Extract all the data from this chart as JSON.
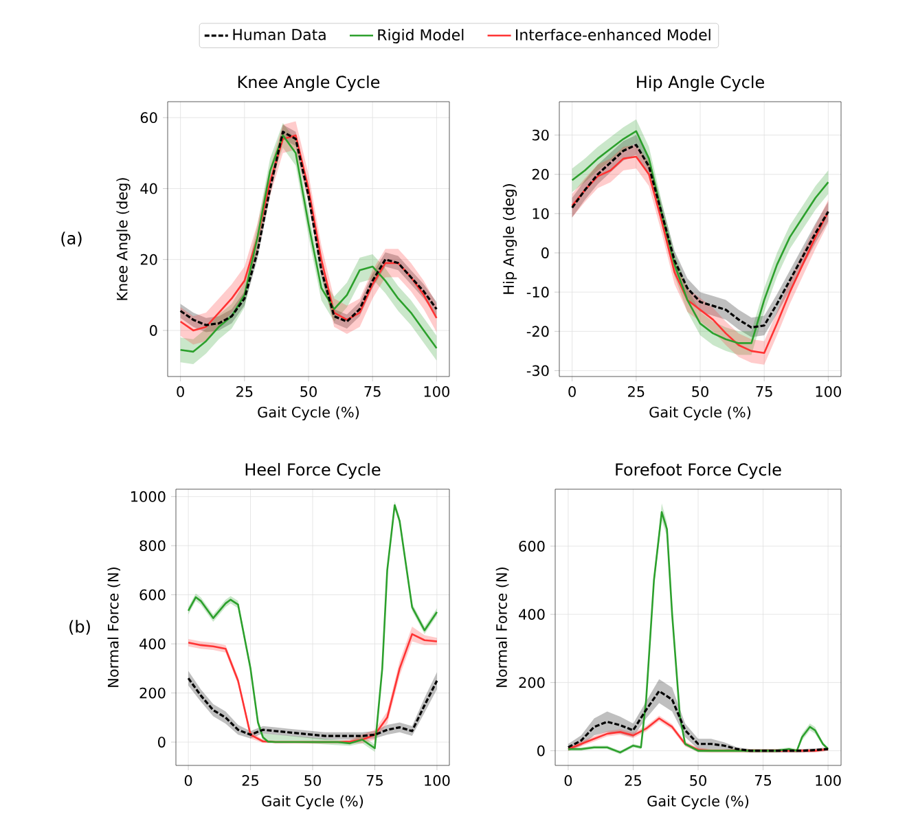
{
  "chart_data": [
    {
      "type": "line",
      "title": "Knee Angle Cycle",
      "xlabel": "Gait Cycle (%)",
      "ylabel": "Knee Angle (deg)",
      "annotations": [
        "(a)"
      ],
      "legend": "top",
      "grid": true,
      "x": [
        0,
        5,
        10,
        15,
        20,
        25,
        30,
        35,
        40,
        45,
        50,
        55,
        60,
        65,
        70,
        75,
        80,
        85,
        90,
        95,
        100
      ],
      "xlim": [
        -5,
        105
      ],
      "ylim": [
        -13,
        64.5
      ],
      "xticks": [
        0,
        25,
        50,
        75,
        100
      ],
      "yticks": [
        0,
        20,
        40,
        60
      ],
      "series": [
        {
          "name": "Human Data",
          "color": "#000000",
          "line_style": "dashed",
          "values": [
            5.5,
            3,
            1.5,
            2,
            4,
            9,
            22,
            40,
            56,
            54,
            38,
            17,
            4,
            2.5,
            6,
            14,
            20,
            19,
            15,
            11,
            6
          ],
          "lower": [
            3.5,
            1,
            -0.5,
            0,
            2,
            7,
            20,
            38,
            54,
            52,
            36,
            15,
            2,
            0.5,
            4,
            12,
            18,
            17,
            13,
            9,
            4
          ],
          "upper": [
            7.5,
            5,
            3.5,
            4,
            6,
            11,
            24,
            42,
            58,
            56,
            40,
            19,
            6,
            4.5,
            8,
            16,
            22,
            21,
            17,
            13,
            8
          ]
        },
        {
          "name": "Rigid Model",
          "color": "#2ca02c",
          "values": [
            -5.5,
            -6,
            -3,
            1,
            4,
            10,
            26,
            45,
            55,
            50,
            30,
            12,
            6,
            10,
            17,
            18,
            14,
            9,
            5,
            0,
            -5
          ],
          "lower": [
            -9,
            -9.5,
            -6.5,
            -2.5,
            0.5,
            6.5,
            22.5,
            41.5,
            51.5,
            46.5,
            26.5,
            8.5,
            2.5,
            6.5,
            13.5,
            14.5,
            10.5,
            5.5,
            1.5,
            -3.5,
            -8.5
          ],
          "upper": [
            -2,
            -2.5,
            0.5,
            4.5,
            7.5,
            13.5,
            29.5,
            48.5,
            58.5,
            53.5,
            33.5,
            15.5,
            9.5,
            13.5,
            20.5,
            21.5,
            17.5,
            12.5,
            8.5,
            3.5,
            -1.5
          ]
        },
        {
          "name": "Interface-enhanced Model",
          "color": "#ff3333",
          "values": [
            2.5,
            0,
            1,
            5,
            9,
            14,
            26,
            42,
            54,
            55,
            40,
            20,
            5,
            3,
            5,
            13,
            19,
            19,
            15,
            10,
            3.5
          ],
          "lower": [
            -1.5,
            -4,
            -3,
            1,
            5,
            10,
            22,
            38,
            50,
            51,
            36,
            16,
            1,
            -1,
            1,
            9,
            15,
            15,
            11,
            6,
            -0.5
          ],
          "upper": [
            6.5,
            4,
            5,
            9,
            13,
            18,
            30,
            46,
            58,
            59,
            44,
            24,
            9,
            7,
            9,
            17,
            23,
            23,
            19,
            14,
            7.5
          ]
        }
      ]
    },
    {
      "type": "line",
      "title": "Hip Angle Cycle",
      "xlabel": "Gait Cycle (%)",
      "ylabel": "Hip Angle (deg)",
      "grid": true,
      "x": [
        0,
        5,
        10,
        15,
        20,
        25,
        30,
        35,
        40,
        45,
        50,
        55,
        60,
        65,
        70,
        75,
        80,
        85,
        90,
        95,
        100
      ],
      "xlim": [
        -5,
        105
      ],
      "ylim": [
        -31.5,
        38.5
      ],
      "xticks": [
        0,
        25,
        50,
        75,
        100
      ],
      "yticks": [
        -30,
        -20,
        -10,
        0,
        10,
        20,
        30
      ],
      "series": [
        {
          "color": "#000000",
          "line_style": "dashed",
          "values": [
            11.5,
            16,
            20,
            23,
            26,
            27.5,
            22,
            10,
            -2,
            -9,
            -12.5,
            -13.5,
            -14.5,
            -17,
            -19,
            -18.5,
            -13,
            -7,
            -1,
            5,
            10.5
          ],
          "lower": [
            9,
            13.5,
            17.5,
            20.5,
            23.5,
            25,
            19.5,
            7.5,
            -4.5,
            -11.5,
            -15,
            -16,
            -17,
            -19.5,
            -21.5,
            -21,
            -15.5,
            -9.5,
            -3.5,
            2.5,
            8
          ],
          "upper": [
            14,
            18.5,
            22.5,
            25.5,
            28.5,
            30,
            24.5,
            12.5,
            0.5,
            -6.5,
            -10,
            -11,
            -12,
            -14.5,
            -16.5,
            -16,
            -10.5,
            -4.5,
            1.5,
            7.5,
            13
          ]
        },
        {
          "color": "#2ca02c",
          "values": [
            18.5,
            21,
            24,
            26.5,
            29,
            31,
            24,
            10,
            -3,
            -12,
            -18,
            -20.5,
            -22,
            -23,
            -23,
            -12,
            -3,
            4,
            9,
            14,
            18
          ],
          "lower": [
            15.5,
            18,
            21,
            23.5,
            26,
            28,
            21,
            7,
            -6,
            -15,
            -21,
            -23.5,
            -25,
            -26,
            -26,
            -15,
            -6,
            1,
            6,
            11,
            15
          ],
          "upper": [
            21.5,
            24,
            27,
            29.5,
            32,
            34,
            27,
            13,
            0,
            -9,
            -15,
            -17.5,
            -19,
            -20,
            -20,
            -9,
            0,
            7,
            12,
            17,
            21
          ]
        },
        {
          "color": "#ff3333",
          "values": [
            12,
            16,
            19.5,
            21,
            24,
            24.5,
            20,
            8,
            -5,
            -12,
            -14.5,
            -17,
            -20.5,
            -23.5,
            -25,
            -25.5,
            -18,
            -10,
            -3,
            4,
            10.5
          ],
          "lower": [
            9,
            13,
            16.5,
            18,
            21,
            21.5,
            17,
            5,
            -8,
            -15,
            -17.5,
            -20,
            -23.5,
            -26.5,
            -28,
            -28.5,
            -21,
            -13,
            -6,
            1,
            7.5
          ],
          "upper": [
            15,
            19,
            22.5,
            24,
            27,
            27.5,
            23,
            11,
            -2,
            -9,
            -11.5,
            -14,
            -17.5,
            -20.5,
            -22,
            -22.5,
            -15,
            -7,
            0,
            7,
            13.5
          ]
        }
      ]
    },
    {
      "type": "line",
      "title": "Heel Force Cycle",
      "xlabel": "Gait Cycle (%)",
      "ylabel": "Normal Force (N)",
      "annotations": [
        "(b)"
      ],
      "grid": true,
      "x": [
        0,
        5,
        10,
        15,
        20,
        25,
        30,
        35,
        40,
        45,
        50,
        55,
        60,
        65,
        70,
        75,
        80,
        85,
        90,
        95,
        100
      ],
      "xlim": [
        -5,
        105
      ],
      "ylim": [
        -95,
        1030
      ],
      "xticks": [
        0,
        25,
        50,
        75,
        100
      ],
      "yticks": [
        0,
        200,
        400,
        600,
        800,
        1000
      ],
      "series": [
        {
          "color": "#000000",
          "line_style": "dashed",
          "values": [
            260,
            190,
            130,
            100,
            50,
            30,
            50,
            45,
            40,
            35,
            30,
            25,
            25,
            25,
            25,
            30,
            50,
            60,
            45,
            150,
            250
          ],
          "lower": [
            230,
            165,
            105,
            75,
            30,
            15,
            35,
            30,
            25,
            20,
            15,
            10,
            10,
            10,
            10,
            15,
            30,
            40,
            25,
            120,
            215
          ],
          "upper": [
            290,
            215,
            155,
            125,
            70,
            45,
            65,
            60,
            55,
            50,
            45,
            40,
            40,
            40,
            40,
            45,
            70,
            80,
            65,
            180,
            285
          ]
        },
        {
          "color": "#2ca02c",
          "x": [
            0,
            3,
            5,
            10,
            15,
            17,
            20,
            25,
            28,
            30,
            32,
            35,
            40,
            50,
            60,
            65,
            70,
            75,
            78,
            80,
            83,
            85,
            90,
            95,
            100
          ],
          "values": [
            535,
            590,
            575,
            505,
            565,
            580,
            560,
            300,
            80,
            20,
            2,
            0,
            0,
            0,
            0,
            -5,
            10,
            -25,
            300,
            700,
            965,
            900,
            550,
            455,
            530
          ],
          "lower": [
            520,
            575,
            560,
            490,
            550,
            565,
            545,
            285,
            65,
            5,
            null,
            null,
            null,
            null,
            null,
            -15,
            -5,
            -40,
            285,
            685,
            950,
            885,
            535,
            440,
            515
          ],
          "upper": [
            550,
            605,
            590,
            520,
            580,
            595,
            575,
            315,
            95,
            35,
            null,
            null,
            null,
            null,
            null,
            5,
            25,
            -10,
            315,
            715,
            980,
            915,
            565,
            470,
            545
          ]
        },
        {
          "color": "#ff3333",
          "values": [
            405,
            395,
            390,
            380,
            250,
            30,
            3,
            0,
            0,
            0,
            0,
            0,
            0,
            2,
            10,
            30,
            100,
            300,
            440,
            415,
            410
          ],
          "lower": [
            390,
            380,
            375,
            365,
            235,
            15,
            -3,
            -5,
            -5,
            -5,
            -5,
            -5,
            -5,
            -5,
            -5,
            10,
            75,
            270,
            410,
            395,
            395
          ],
          "upper": [
            420,
            410,
            405,
            395,
            265,
            45,
            10,
            5,
            5,
            5,
            5,
            5,
            5,
            10,
            30,
            50,
            125,
            330,
            470,
            435,
            425
          ]
        }
      ]
    },
    {
      "type": "line",
      "title": "Forefoot Force Cycle",
      "xlabel": "Gait Cycle (%)",
      "ylabel": "Normal Force (N)",
      "grid": true,
      "x": [
        0,
        5,
        10,
        15,
        20,
        25,
        30,
        35,
        40,
        45,
        50,
        55,
        60,
        65,
        70,
        75,
        80,
        85,
        90,
        95,
        100
      ],
      "xlim": [
        -5,
        105
      ],
      "ylim": [
        -43,
        767
      ],
      "xticks": [
        0,
        25,
        50,
        75,
        100
      ],
      "yticks": [
        0,
        200,
        400,
        600
      ],
      "series": [
        {
          "color": "#000000",
          "line_style": "dashed",
          "values": [
            10,
            30,
            70,
            85,
            75,
            60,
            120,
            175,
            150,
            60,
            20,
            20,
            15,
            5,
            0,
            0,
            0,
            0,
            0,
            2,
            5
          ],
          "lower": [
            0,
            15,
            45,
            55,
            50,
            40,
            95,
            140,
            115,
            40,
            5,
            5,
            5,
            0,
            -5,
            -5,
            -5,
            -5,
            -5,
            -3,
            0
          ],
          "upper": [
            20,
            45,
            95,
            115,
            100,
            80,
            145,
            210,
            185,
            80,
            35,
            35,
            25,
            10,
            5,
            5,
            5,
            5,
            5,
            7,
            10
          ]
        },
        {
          "color": "#2ca02c",
          "x": [
            0,
            5,
            10,
            15,
            20,
            25,
            28,
            30,
            33,
            36,
            38,
            40,
            43,
            45,
            50,
            60,
            70,
            80,
            85,
            88,
            90,
            93,
            95,
            98,
            100
          ],
          "values": [
            5,
            5,
            10,
            10,
            -5,
            15,
            10,
            150,
            500,
            700,
            650,
            400,
            100,
            20,
            0,
            0,
            0,
            0,
            5,
            0,
            40,
            70,
            60,
            20,
            5
          ],
          "lower": [
            0,
            0,
            5,
            5,
            -10,
            10,
            5,
            140,
            485,
            675,
            630,
            385,
            90,
            15,
            -5,
            -5,
            -5,
            -5,
            0,
            -5,
            30,
            60,
            50,
            15,
            0
          ],
          "upper": [
            10,
            10,
            15,
            15,
            0,
            20,
            15,
            160,
            515,
            725,
            670,
            415,
            110,
            25,
            5,
            5,
            5,
            5,
            10,
            5,
            50,
            80,
            70,
            25,
            10
          ]
        },
        {
          "color": "#ff3333",
          "values": [
            5,
            20,
            35,
            50,
            55,
            45,
            65,
            95,
            70,
            20,
            3,
            0,
            0,
            0,
            0,
            0,
            0,
            0,
            0,
            0,
            5
          ],
          "lower": [
            0,
            13,
            27,
            42,
            47,
            37,
            57,
            87,
            62,
            13,
            -3,
            -5,
            -5,
            -5,
            -5,
            -5,
            -5,
            -5,
            -5,
            -5,
            0
          ],
          "upper": [
            10,
            27,
            43,
            58,
            63,
            53,
            73,
            103,
            78,
            27,
            9,
            5,
            5,
            5,
            5,
            5,
            5,
            5,
            5,
            5,
            10
          ]
        }
      ]
    }
  ]
}
